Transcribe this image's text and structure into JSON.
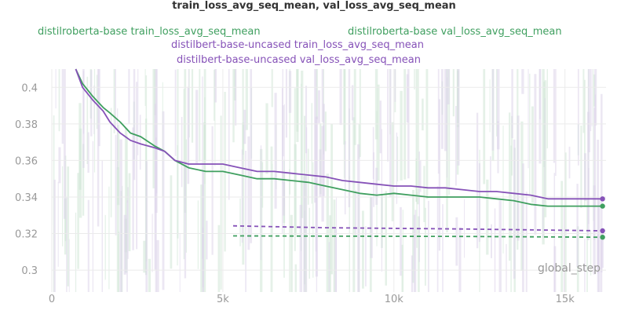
{
  "chart_data": {
    "type": "line",
    "title": "train_loss_avg_seq_mean, val_loss_avg_seq_mean",
    "xlabel": "global_step",
    "ylabel": "",
    "xlim": [
      0,
      16200
    ],
    "ylim": [
      0.288,
      0.41
    ],
    "x_ticks": [
      0,
      5000,
      10000,
      15000
    ],
    "x_tick_labels": [
      "0",
      "5k",
      "10k",
      "15k"
    ],
    "y_ticks": [
      0.3,
      0.32,
      0.34,
      0.36,
      0.38,
      0.4
    ],
    "y_tick_labels": [
      "0.3",
      "0.32",
      "0.34",
      "0.36",
      "0.38",
      "0.4"
    ],
    "grid": true,
    "legend_position": "top",
    "colors": {
      "green": "#3f9f5f",
      "purple": "#8652b8",
      "raw_green": "#cfe6d5",
      "raw_purple": "#ddd3ea",
      "axis_text": "#999999",
      "grid": "#ebebeb"
    },
    "series": [
      {
        "name": "distilroberta-base train_loss_avg_seq_mean",
        "color": "#3f9f5f",
        "style": "solid",
        "x": [
          700,
          900,
          1200,
          1500,
          1700,
          2000,
          2300,
          2600,
          3000,
          3300,
          3600,
          4000,
          4500,
          5000,
          5500,
          6000,
          6500,
          7000,
          7500,
          8000,
          8500,
          9000,
          9500,
          10000,
          10500,
          11000,
          11500,
          12000,
          12500,
          13000,
          13500,
          14000,
          14500,
          15000,
          15500,
          16100
        ],
        "y": [
          0.41,
          0.402,
          0.395,
          0.389,
          0.386,
          0.381,
          0.375,
          0.373,
          0.368,
          0.365,
          0.36,
          0.356,
          0.354,
          0.354,
          0.352,
          0.35,
          0.35,
          0.349,
          0.348,
          0.346,
          0.344,
          0.342,
          0.341,
          0.342,
          0.341,
          0.34,
          0.34,
          0.34,
          0.34,
          0.339,
          0.338,
          0.336,
          0.335,
          0.335,
          0.335,
          0.335
        ]
      },
      {
        "name": "distilroberta-base val_loss_avg_seq_mean",
        "color": "#3f9f5f",
        "style": "dashed",
        "x": [
          5300,
          8000,
          12000,
          16100
        ],
        "y": [
          0.3187,
          0.3186,
          0.3184,
          0.318
        ]
      },
      {
        "name": "distilbert-base-uncased train_loss_avg_seq_mean",
        "color": "#8652b8",
        "style": "dashed",
        "x": [
          5300,
          8000,
          12000,
          16100
        ],
        "y": [
          0.3242,
          0.3232,
          0.3225,
          0.3215
        ]
      },
      {
        "name": "distilbert-base-uncased val_loss_avg_seq_mean",
        "color": "#8652b8",
        "style": "solid",
        "x": [
          700,
          900,
          1200,
          1500,
          1700,
          2000,
          2300,
          2600,
          3000,
          3300,
          3600,
          4000,
          4500,
          5000,
          5500,
          6000,
          6500,
          7000,
          7500,
          8000,
          8500,
          9000,
          9500,
          10000,
          10500,
          11000,
          11500,
          12000,
          12500,
          13000,
          13500,
          14000,
          14500,
          15000,
          15500,
          16100
        ],
        "y": [
          0.41,
          0.4,
          0.393,
          0.387,
          0.381,
          0.375,
          0.371,
          0.369,
          0.367,
          0.365,
          0.36,
          0.358,
          0.358,
          0.358,
          0.356,
          0.354,
          0.354,
          0.353,
          0.352,
          0.351,
          0.349,
          0.348,
          0.347,
          0.346,
          0.346,
          0.345,
          0.345,
          0.344,
          0.343,
          0.343,
          0.342,
          0.341,
          0.339,
          0.339,
          0.339,
          0.339
        ]
      }
    ]
  }
}
